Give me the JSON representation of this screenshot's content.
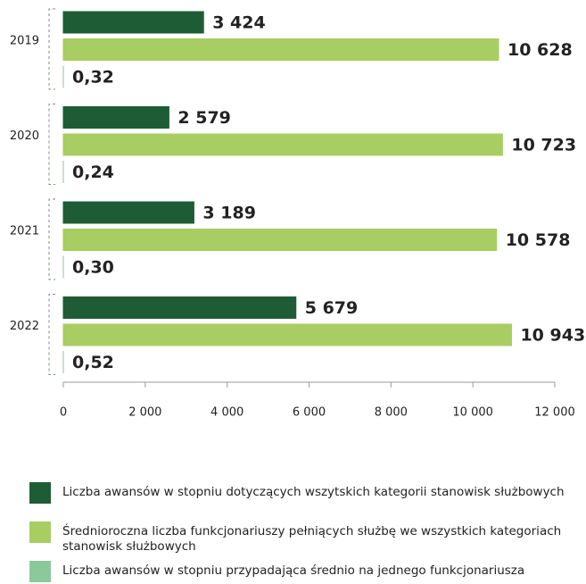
{
  "chart_data": {
    "type": "hbar",
    "categories": [
      "2019",
      "2020",
      "2021",
      "2022"
    ],
    "series": [
      {
        "name": "Liczba awansów w stopniu dotyczących wszytskich kategorii stanowisk służbowych",
        "color": "#1e5c36",
        "values": [
          3424,
          2579,
          3189,
          5679
        ],
        "value_labels": [
          "3 424",
          "2 579",
          "3 189",
          "5 679"
        ]
      },
      {
        "name": "Średnioroczna liczba funkcjonariuszy pełniących służbę we wszystkich kategoriach stanowisk służbowych",
        "color": "#a8cd62",
        "values": [
          10628,
          10723,
          10578,
          10943
        ],
        "value_labels": [
          "10 628",
          "10 723",
          "10 578",
          "10 943"
        ]
      },
      {
        "name": "Liczba awansów w stopniu przypadająca średnio na jednego funkcjonariusza",
        "color": "#8cc99a",
        "values": [
          0.32,
          0.24,
          0.3,
          0.52
        ],
        "value_labels": [
          "0,32",
          "0,24",
          "0,30",
          "0,52"
        ]
      }
    ],
    "xlim": [
      0,
      12000
    ],
    "xticks": [
      0,
      {
        "value": 2000,
        "label": "2 000"
      },
      {
        "value": 4000,
        "label": "4 000"
      },
      {
        "value": 6000,
        "label": "6 000"
      },
      {
        "value": 8000,
        "label": "8 000"
      },
      {
        "value": 10000,
        "label": "10 000"
      },
      {
        "value": 12000,
        "label": "12 000"
      }
    ],
    "legend": "bottom"
  }
}
